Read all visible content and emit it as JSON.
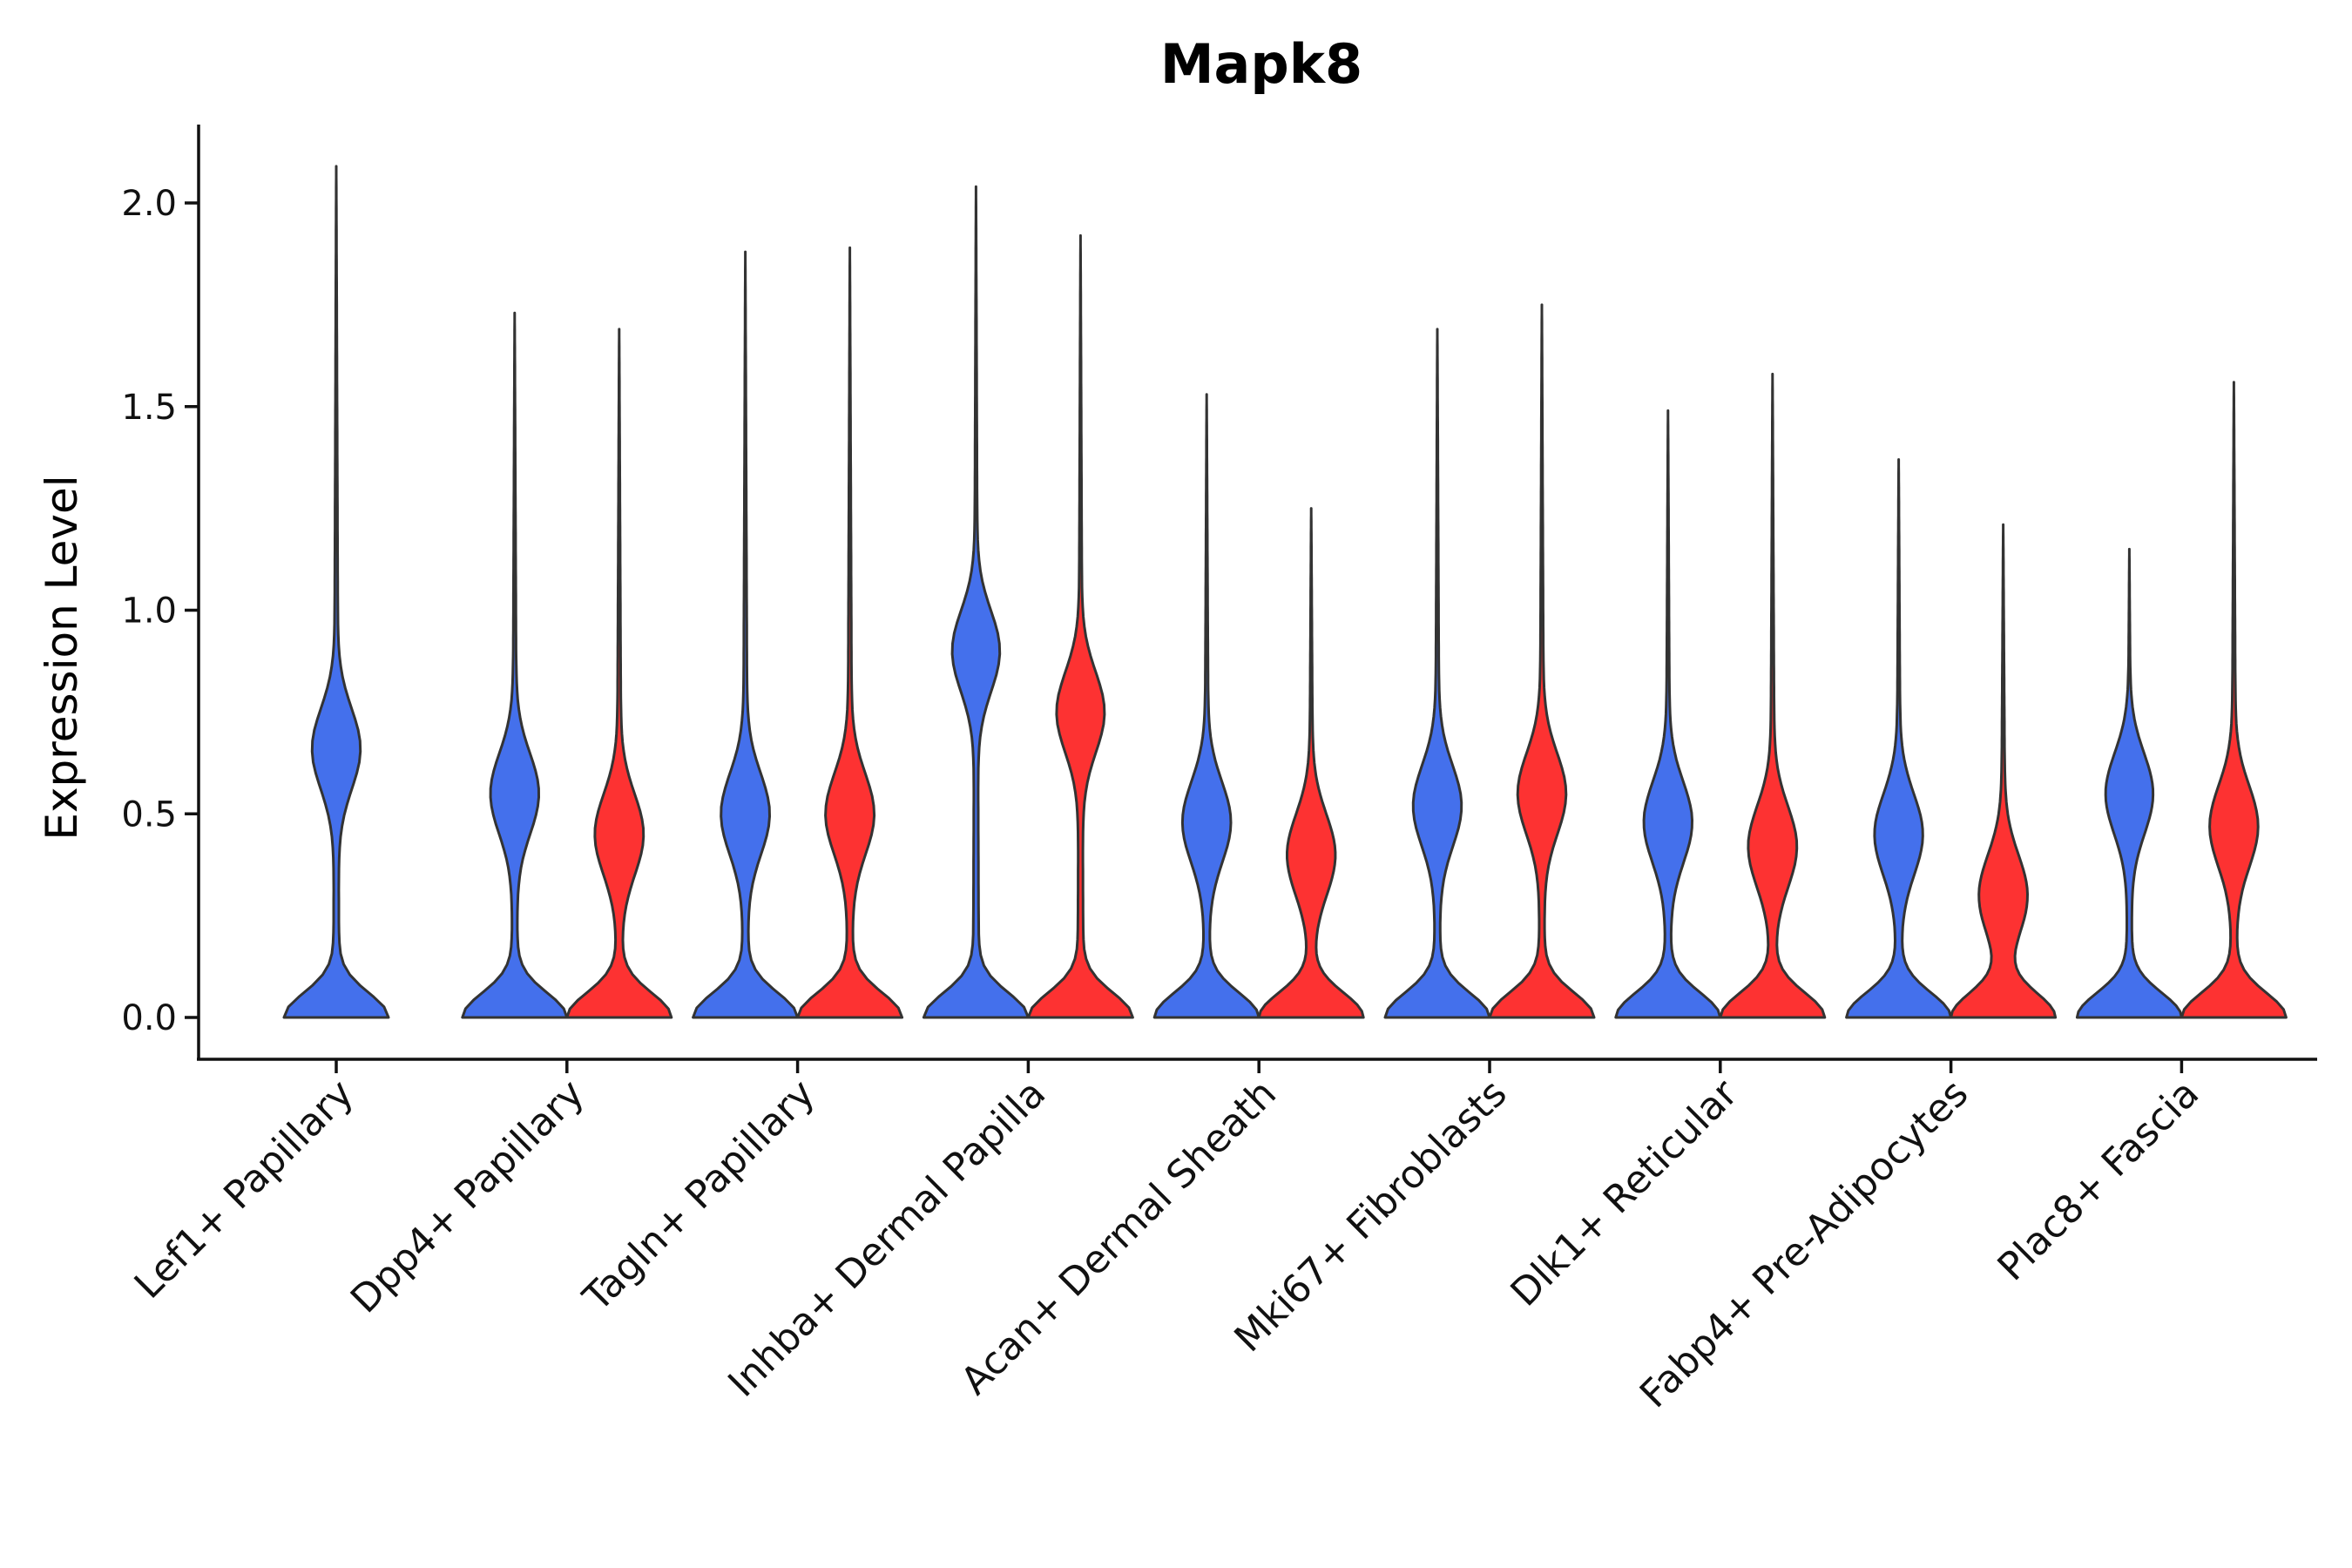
{
  "chart_data": {
    "type": "violin",
    "title": "Mapk8",
    "xlabel": "",
    "ylabel": "Expression Level",
    "ylim": [
      -0.1,
      2.2
    ],
    "yticks": [
      0.0,
      0.5,
      1.0,
      1.5,
      2.0
    ],
    "ytick_labels": [
      "0.0",
      "0.5",
      "1.0",
      "1.5",
      "2.0"
    ],
    "grid": false,
    "legend": "none",
    "categories": [
      "Lef1+ Papillary",
      "Dpp4+ Papillary",
      "Tagln+ Papillary",
      "Inhba+ Dermal Papilla",
      "Acan+ Dermal Sheath",
      "Mki67+ Fibroblasts",
      "Dlk1+ Reticular",
      "Fabp4+ Pre-Adipocytes",
      "Plac8+ Fascia"
    ],
    "series": [
      {
        "name": "blue group",
        "color": "#4470ec",
        "max_values": [
          2.09,
          1.73,
          1.88,
          2.04,
          1.53,
          1.69,
          1.49,
          1.37,
          1.15
        ],
        "modes": [
          0.66,
          0.55,
          0.5,
          0.9,
          0.48,
          0.52,
          0.48,
          0.45,
          0.55
        ]
      },
      {
        "name": "red group",
        "color": "#fd3232",
        "max_values": [
          null,
          1.69,
          1.89,
          1.92,
          1.25,
          1.75,
          1.58,
          1.21,
          1.56
        ],
        "modes": [
          null,
          0.45,
          0.5,
          0.75,
          0.4,
          0.55,
          0.42,
          0.3,
          0.47
        ]
      }
    ]
  }
}
